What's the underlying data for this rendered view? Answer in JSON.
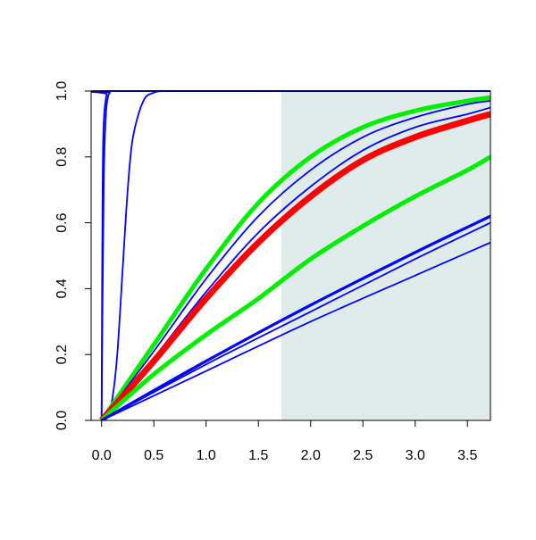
{
  "chart_data": {
    "type": "line",
    "title": "",
    "xlabel": "",
    "ylabel": "",
    "xlim": [
      -0.1,
      3.72
    ],
    "ylim": [
      0,
      1
    ],
    "x_ticks": [
      "0.0",
      "0.5",
      "1.0",
      "1.5",
      "2.0",
      "2.5",
      "3.0",
      "3.5"
    ],
    "y_ticks": [
      "0.0",
      "0.2",
      "0.4",
      "0.6",
      "0.8",
      "1.0"
    ],
    "grid": false,
    "shaded_region": {
      "x_start": 1.72,
      "x_end": 3.72,
      "color": "#e0ecec"
    },
    "colors": {
      "blue": "#0000ff",
      "green": "#00ee00",
      "red": "#ff0000"
    },
    "series": [
      {
        "color": "blue",
        "width": "thin",
        "x": [
          0,
          0.005,
          0.01,
          0.02,
          0.05,
          0.1,
          3.72
        ],
        "y": [
          0,
          0.4,
          0.7,
          0.9,
          0.99,
          1,
          1
        ]
      },
      {
        "color": "blue",
        "width": "thin",
        "x": [
          0,
          0.02,
          0.04,
          0.06,
          0.08,
          0.1,
          3.72
        ],
        "y": [
          0,
          0.7,
          0.92,
          0.98,
          0.995,
          1,
          1
        ]
      },
      {
        "color": "blue",
        "width": "thin",
        "x": [
          0,
          0.05,
          0.1,
          0.15,
          0.2,
          0.25,
          0.3,
          0.4,
          0.5,
          0.6,
          0.8,
          3.72
        ],
        "y": [
          0,
          0.01,
          0.06,
          0.2,
          0.45,
          0.7,
          0.86,
          0.97,
          0.995,
          1,
          1,
          1
        ]
      },
      {
        "color": "green",
        "width": "thick",
        "x": [
          0,
          0.5,
          1.0,
          1.5,
          2.0,
          2.5,
          3.0,
          3.5,
          3.72
        ],
        "y": [
          0,
          0.23,
          0.46,
          0.66,
          0.8,
          0.89,
          0.94,
          0.97,
          0.98
        ]
      },
      {
        "color": "blue",
        "width": "thin",
        "x": [
          0,
          0.5,
          1.0,
          1.5,
          2.0,
          2.5,
          3.0,
          3.5,
          3.72
        ],
        "y": [
          0,
          0.21,
          0.43,
          0.62,
          0.76,
          0.86,
          0.92,
          0.96,
          0.97
        ]
      },
      {
        "color": "blue",
        "width": "thin",
        "x": [
          0,
          0.5,
          1.0,
          1.5,
          2.0,
          2.5,
          3.0,
          3.5,
          3.72
        ],
        "y": [
          0,
          0.19,
          0.39,
          0.57,
          0.71,
          0.82,
          0.89,
          0.93,
          0.95
        ]
      },
      {
        "color": "red",
        "width": "thicker",
        "x": [
          0,
          0.5,
          1.0,
          1.5,
          2.0,
          2.5,
          3.0,
          3.5,
          3.72
        ],
        "y": [
          0,
          0.18,
          0.37,
          0.54,
          0.68,
          0.79,
          0.86,
          0.91,
          0.93
        ]
      },
      {
        "color": "green",
        "width": "thick",
        "x": [
          0,
          0.5,
          1.0,
          1.5,
          2.0,
          2.5,
          3.0,
          3.5,
          3.72
        ],
        "y": [
          0,
          0.14,
          0.26,
          0.37,
          0.49,
          0.59,
          0.68,
          0.76,
          0.8
        ]
      },
      {
        "color": "blue",
        "width": "medium",
        "x": [
          0,
          1.0,
          2.0,
          3.0,
          3.72
        ],
        "y": [
          0,
          0.18,
          0.35,
          0.51,
          0.62
        ]
      },
      {
        "color": "blue",
        "width": "thin",
        "x": [
          0,
          1.0,
          2.0,
          3.0,
          3.72
        ],
        "y": [
          0,
          0.17,
          0.33,
          0.49,
          0.6
        ]
      },
      {
        "color": "blue",
        "width": "thin",
        "x": [
          0,
          1.0,
          2.0,
          3.0,
          3.72
        ],
        "y": [
          0,
          0.15,
          0.3,
          0.44,
          0.54
        ]
      }
    ]
  }
}
